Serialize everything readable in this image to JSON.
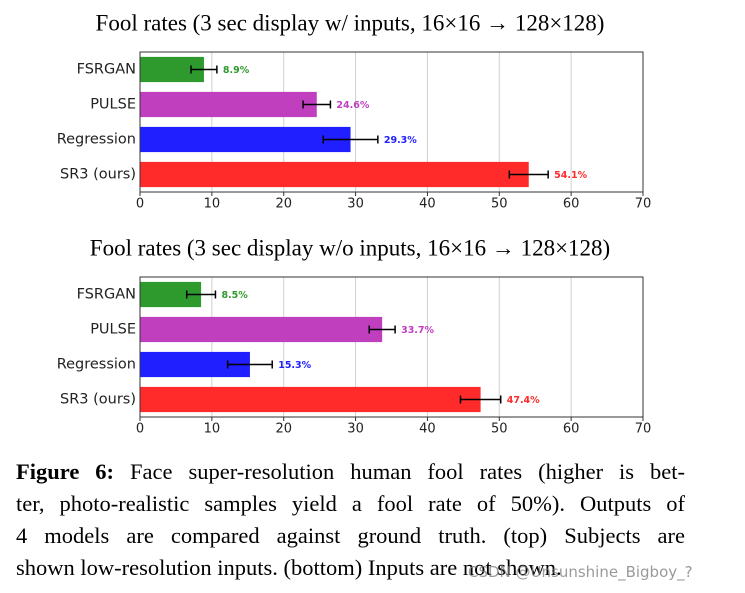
{
  "chart_data": [
    {
      "type": "bar",
      "orientation": "horizontal",
      "title": "Fool rates (3 sec display w/ inputs, 16×16 → 128×128)",
      "categories": [
        "FSRGAN",
        "PULSE",
        "Regression",
        "SR3 (ours)"
      ],
      "values": [
        8.9,
        24.6,
        29.3,
        54.1
      ],
      "errors": [
        1.8,
        1.9,
        3.8,
        2.7
      ],
      "value_labels": [
        "8.9%",
        "24.6%",
        "29.3%",
        "54.1%"
      ],
      "colors": [
        "#2e9a2e",
        "#bf3fbf",
        "#1f1fff",
        "#ff2a2a"
      ],
      "xlim": [
        0,
        70
      ],
      "xticks": [
        0,
        10,
        20,
        30,
        40,
        50,
        60,
        70
      ],
      "grid": true
    },
    {
      "type": "bar",
      "orientation": "horizontal",
      "title": "Fool rates (3 sec display w/o inputs, 16×16 → 128×128)",
      "categories": [
        "FSRGAN",
        "PULSE",
        "Regression",
        "SR3 (ours)"
      ],
      "values": [
        8.5,
        33.7,
        15.3,
        47.4
      ],
      "errors": [
        2.0,
        1.8,
        3.1,
        2.8
      ],
      "value_labels": [
        "8.5%",
        "33.7%",
        "15.3%",
        "47.4%"
      ],
      "colors": [
        "#2e9a2e",
        "#bf3fbf",
        "#1f1fff",
        "#ff2a2a"
      ],
      "xlim": [
        0,
        70
      ],
      "xticks": [
        0,
        10,
        20,
        30,
        40,
        50,
        60,
        70
      ],
      "grid": true
    }
  ],
  "caption": {
    "label": "Figure 6:",
    "lines": [
      "Face super-resolution human fool rates (higher is bet-",
      "ter, photo-realistic samples yield a fool rate of 50%).  Outputs of",
      "4 models are compared against ground truth.  (top) Subjects are",
      "shown low-resolution inputs. (bottom) Inputs are not shown."
    ]
  },
  "watermark": "CSDN @Unsunshine_Bigboy_?"
}
